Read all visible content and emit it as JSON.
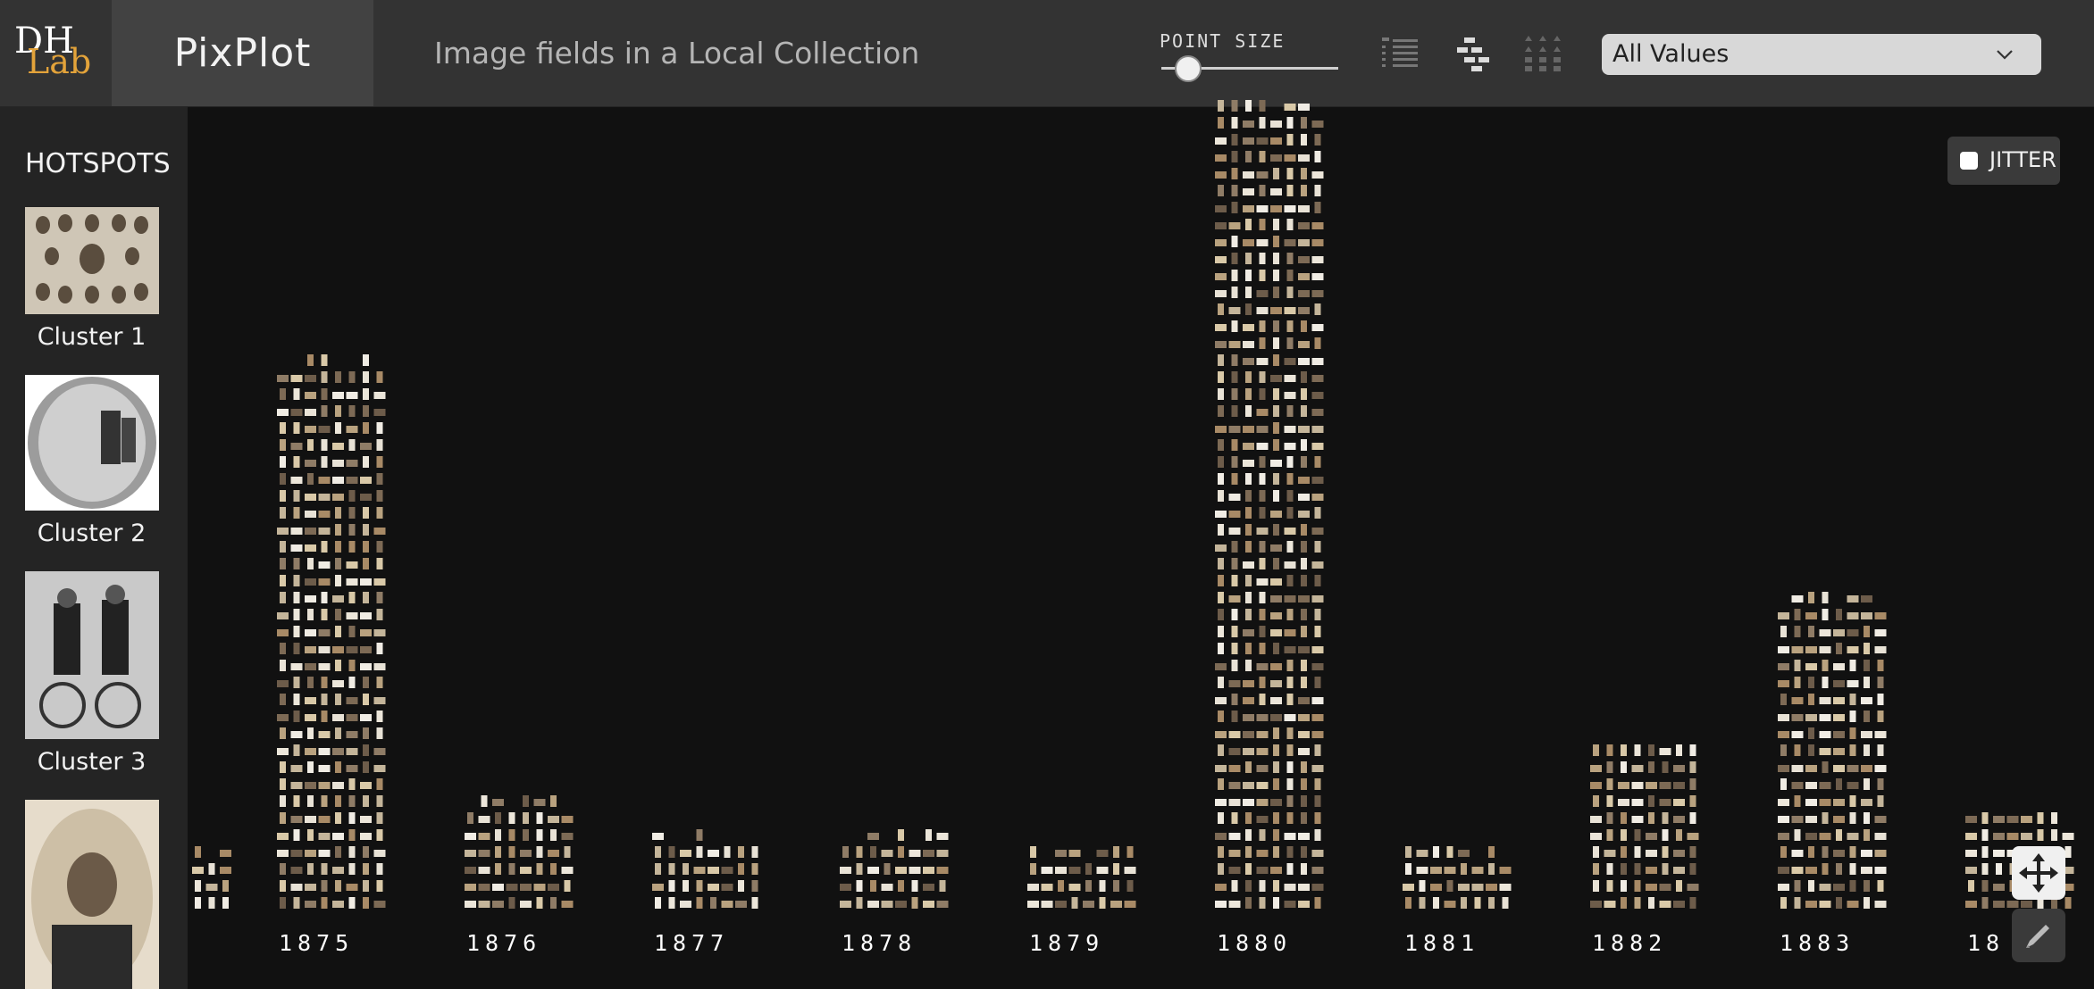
{
  "header": {
    "logo_top": "DH",
    "logo_bottom": "Lab",
    "brand": "PixPlot",
    "subtitle": "Image fields in a Local Collection",
    "point_size_label": "POINT SIZE",
    "point_size_value": 0.15,
    "layout_icons": [
      "list-icon",
      "tree-icon",
      "grid-icon"
    ],
    "filter": {
      "selected": "All Values"
    }
  },
  "sidebar": {
    "title": "HOTSPOTS",
    "hotspots": [
      {
        "label": "Cluster 1",
        "thumb": "group-portrait-thumbnail"
      },
      {
        "label": "Cluster 2",
        "thumb": "snow-scene-thumbnail"
      },
      {
        "label": "Cluster 3",
        "thumb": "cyclists-thumbnail"
      },
      {
        "label": "",
        "thumb": "portrait-thumbnail"
      }
    ]
  },
  "controls": {
    "jitter_label": "JITTER",
    "jitter_checked": false,
    "move_icon": "move-icon",
    "draw_icon": "pencil-icon"
  },
  "chart_data": {
    "type": "bar",
    "categories": [
      "",
      "1875",
      "1876",
      "1877",
      "1878",
      "1879",
      "1880",
      "1881",
      "1882",
      "1883",
      "18"
    ],
    "values": [
      4,
      33,
      7,
      5,
      5,
      4,
      48,
      4,
      10,
      19,
      6
    ],
    "colors": {
      "background": "#111111",
      "accent": "#e3a33a"
    }
  }
}
